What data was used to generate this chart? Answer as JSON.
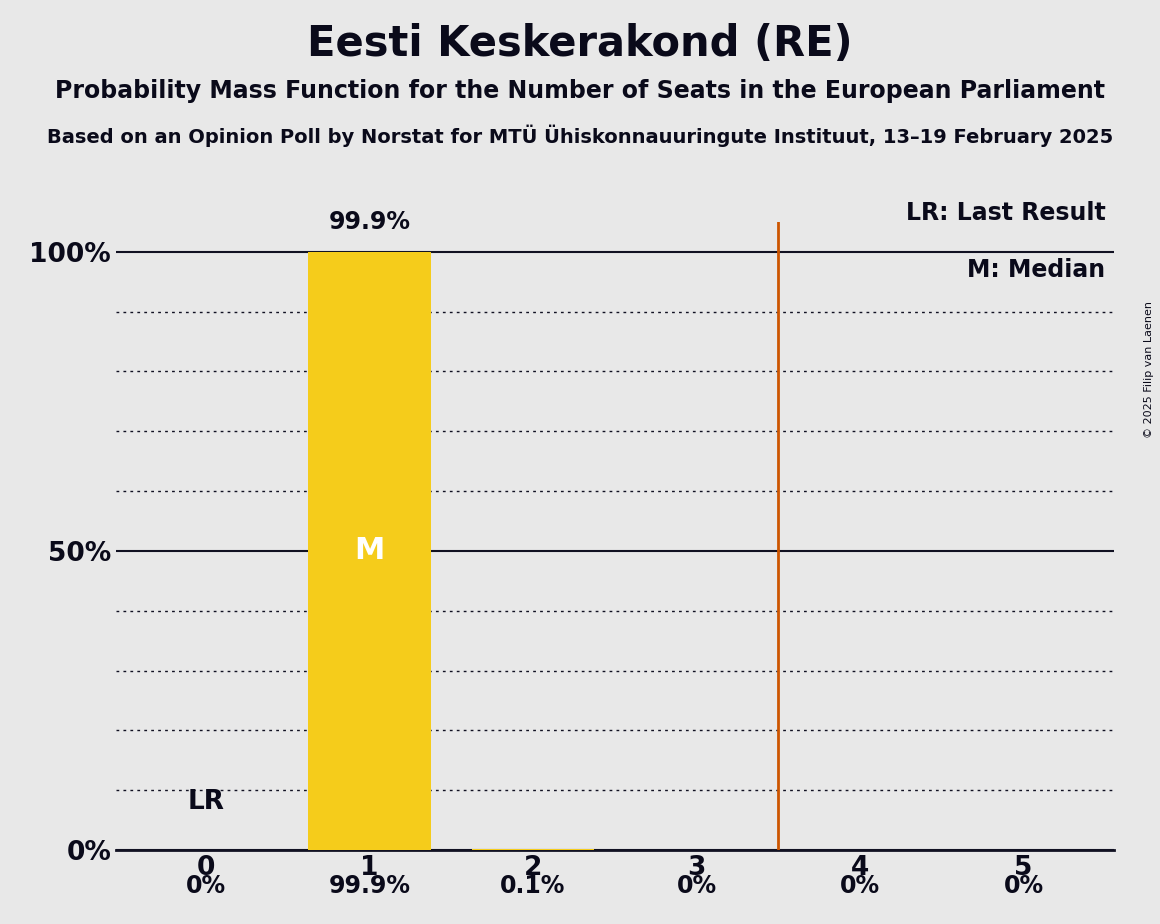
{
  "title": "Eesti Keskerakond (RE)",
  "subtitle": "Probability Mass Function for the Number of Seats in the European Parliament",
  "source_line": "Based on an Opinion Poll by Norstat for MTÜ Ühiskonnauuringute Instituut, 13–19 February 2025",
  "copyright": "© 2025 Filip van Laenen",
  "seats": [
    0,
    1,
    2,
    3,
    4,
    5
  ],
  "probabilities": [
    0.0,
    99.9,
    0.1,
    0.0,
    0.0,
    0.0
  ],
  "prob_labels": [
    "0%",
    "99.9%",
    "0.1%",
    "0%",
    "0%",
    "0%"
  ],
  "bar_color": "#F5CC1B",
  "median_seat": 1,
  "last_result_seat": 3.5,
  "median_label": "M",
  "lr_label": "LR",
  "lr_bar_seat": 0,
  "legend_lr": "LR: Last Result",
  "legend_m": "M: Median",
  "bg_color": "#E8E8E8",
  "plot_bg_color": "#E8E8E8",
  "title_fontsize": 30,
  "subtitle_fontsize": 17,
  "source_fontsize": 14,
  "bar_label_fontsize": 17,
  "tick_fontsize": 19,
  "legend_fontsize": 17,
  "median_text_fontsize": 22,
  "lr_text_fontsize": 19,
  "ylim": [
    0,
    105
  ],
  "yticks": [
    0,
    50,
    100
  ],
  "ytick_labels": [
    "0%",
    "50%",
    "100%"
  ],
  "solid_line_color": "#111122",
  "dotted_line_color": "#111122",
  "vline_color": "#CC5500",
  "text_color": "#0a0a1a"
}
